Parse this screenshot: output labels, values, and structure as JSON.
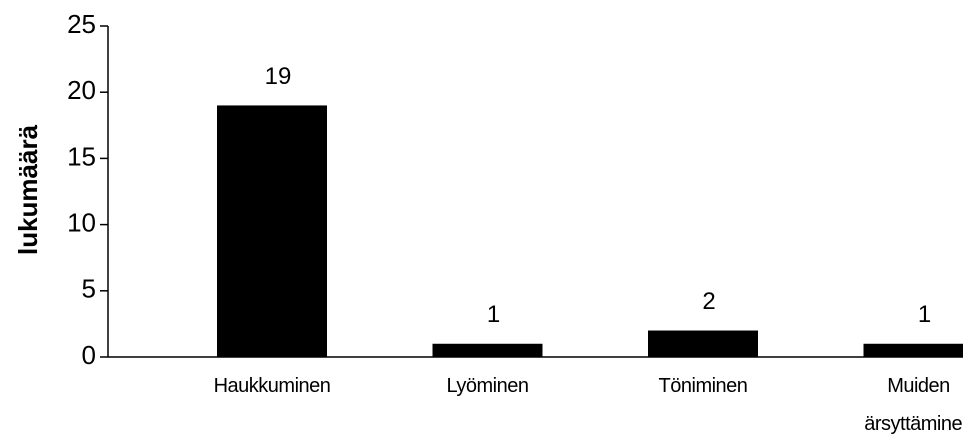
{
  "chart_data": {
    "type": "bar",
    "ylabel": "lukumäärä",
    "categories": [
      "Haukkuminen",
      "Lyöminen",
      "Töniminen",
      "Muiden ärsyttäminen"
    ],
    "values": [
      19,
      1,
      2,
      1
    ],
    "color": "#000000",
    "ylim": [
      0,
      25
    ],
    "yticks": [
      0,
      5,
      10,
      15,
      20,
      25
    ],
    "grid": false
  }
}
